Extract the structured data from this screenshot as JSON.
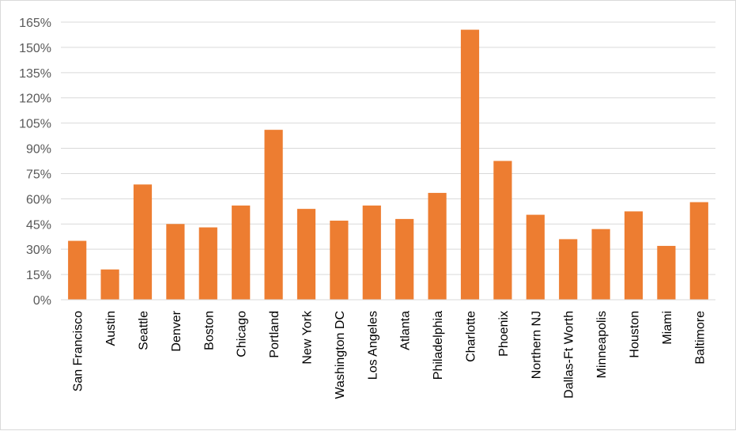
{
  "chart_data": {
    "type": "bar",
    "categories": [
      "San Francisco",
      "Austin",
      "Seattle",
      "Denver",
      "Boston",
      "Chicago",
      "Portland",
      "New York",
      "Washington DC",
      "Los Angeles",
      "Atlanta",
      "Philadelphia",
      "Charlotte",
      "Phoenix",
      "Northern NJ",
      "Dallas-Ft Worth",
      "Minneapolis",
      "Houston",
      "Miami",
      "Baltimore"
    ],
    "values": [
      35,
      18,
      68.5,
      45,
      43,
      56,
      101,
      54,
      47,
      56,
      48,
      63.5,
      160.5,
      82.5,
      50.5,
      36,
      42,
      52.5,
      32,
      58
    ],
    "ylim": [
      0,
      165
    ],
    "yticks": [
      "0%",
      "15%",
      "30%",
      "45%",
      "60%",
      "75%",
      "90%",
      "105%",
      "120%",
      "135%",
      "150%",
      "165%"
    ],
    "ytick_values": [
      0,
      15,
      30,
      45,
      60,
      75,
      90,
      105,
      120,
      135,
      150,
      165
    ],
    "bar_color": "#ed7d31",
    "grid": true,
    "legend": "none"
  }
}
